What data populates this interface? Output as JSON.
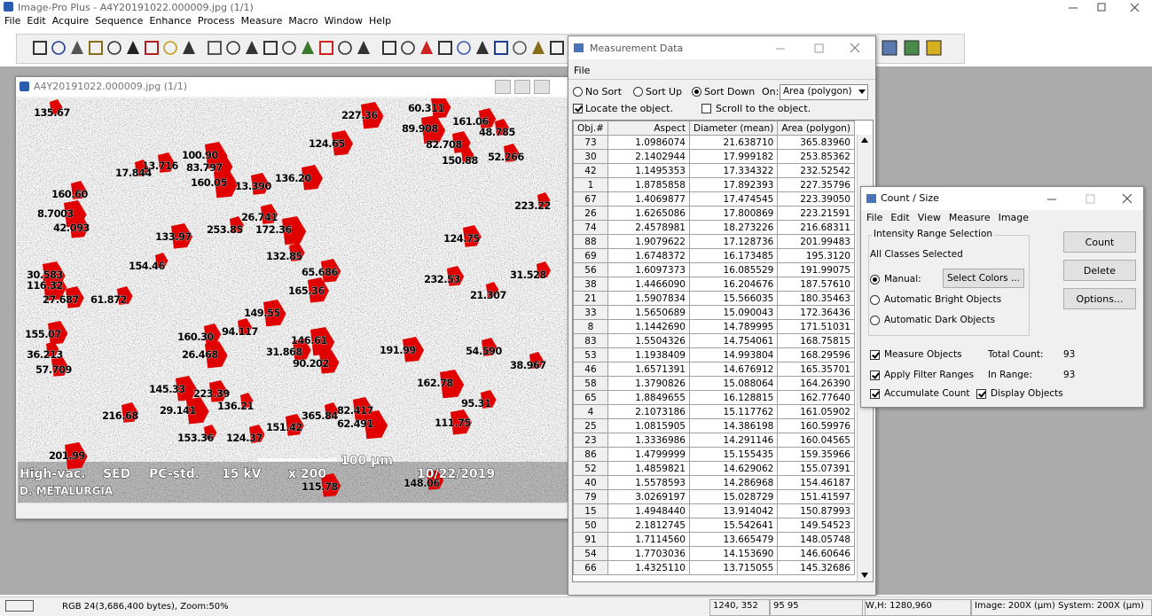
{
  "app": {
    "title": "Image-Pro Plus - A4Y20191022.000009.jpg (1/1)",
    "menu": [
      "File",
      "Edit",
      "Acquire",
      "Sequence",
      "Enhance",
      "Process",
      "Measure",
      "Macro",
      "Window",
      "Help"
    ]
  },
  "image_window": {
    "title": "A4Y20191022.000009.jpg (1/1)",
    "particle_labels": [
      "135.67",
      "227.36",
      "60.311",
      "161.06",
      "48.785",
      "89.908",
      "124.65",
      "82.708",
      "52.266",
      "150.88",
      "100.90",
      "83.797",
      "13.716",
      "17.844",
      "160.05",
      "136.20",
      "13.390",
      "160.60",
      "223.22",
      "8.7003",
      "42.093",
      "26.741",
      "253.85",
      "172.36",
      "133.97",
      "124.75",
      "132.85",
      "154.46",
      "30.583",
      "65.686",
      "232.53",
      "31.528",
      "116.32",
      "165.36",
      "27.687",
      "61.872",
      "21.307",
      "149.55",
      "155.07",
      "160.30",
      "94.117",
      "146.61",
      "191.99",
      "31.868",
      "54.590",
      "36.213",
      "26.468",
      "90.202",
      "57.709",
      "38.967",
      "162.78",
      "145.33",
      "223.39",
      "95.31",
      "136.21",
      "29.141",
      "82.417",
      "216.68",
      "365.84",
      "62.491",
      "111.75",
      "151.42",
      "124.37",
      "153.36",
      "201.99",
      "115.78",
      "148.06"
    ],
    "info_bar": {
      "mode": "High-vac.",
      "detector": "SED",
      "pc": "PC-std.",
      "voltage": "15 kV",
      "magnification": "x 200",
      "scale": "100 µm",
      "date": "10/22/2019",
      "operator": "D. METALURGIA"
    }
  },
  "measurement_window": {
    "title": "Measurement Data",
    "menu": [
      "File"
    ],
    "sort_options": [
      "No Sort",
      "Sort Up",
      "Sort Down"
    ],
    "sort_on_label": "On:",
    "sort_on_value": "Area (polygon)",
    "locate": "Locate the object.",
    "scroll": "Scroll to the object.",
    "table": {
      "headers": [
        "Obj.#",
        "Aspect",
        "Diameter (mean)",
        "Area (polygon)"
      ],
      "rows": [
        [
          "73",
          "1.0986074",
          "21.638710",
          "365.83960"
        ],
        [
          "30",
          "2.1402944",
          "17.999182",
          "253.85362"
        ],
        [
          "42",
          "1.1495353",
          "17.334322",
          "232.52542"
        ],
        [
          "1",
          "1.8785858",
          "17.892393",
          "227.35796"
        ],
        [
          "67",
          "1.4069877",
          "17.474545",
          "223.39050"
        ],
        [
          "26",
          "1.6265086",
          "17.800869",
          "223.21591"
        ],
        [
          "74",
          "2.4578981",
          "18.273226",
          "216.68311"
        ],
        [
          "88",
          "1.9079622",
          "17.128736",
          "201.99483"
        ],
        [
          "69",
          "1.6748372",
          "16.173485",
          "195.3120"
        ],
        [
          "56",
          "1.6097373",
          "16.085529",
          "191.99075"
        ],
        [
          "38",
          "1.4466090",
          "16.204676",
          "187.57610"
        ],
        [
          "21",
          "1.5907834",
          "15.566035",
          "180.35463"
        ],
        [
          "33",
          "1.5650689",
          "15.090043",
          "172.36436"
        ],
        [
          "8",
          "1.1442690",
          "14.789995",
          "171.51031"
        ],
        [
          "83",
          "1.5504326",
          "14.754061",
          "168.75815"
        ],
        [
          "53",
          "1.1938409",
          "14.993804",
          "168.29596"
        ],
        [
          "46",
          "1.6571391",
          "14.676912",
          "165.35701"
        ],
        [
          "58",
          "1.3790826",
          "15.088064",
          "164.26390"
        ],
        [
          "65",
          "1.8849655",
          "16.128815",
          "162.77640"
        ],
        [
          "4",
          "2.1073186",
          "15.117762",
          "161.05902"
        ],
        [
          "25",
          "1.0815905",
          "14.386198",
          "160.59976"
        ],
        [
          "23",
          "1.3336986",
          "14.291146",
          "160.04565"
        ],
        [
          "86",
          "1.4799999",
          "15.155435",
          "159.35966"
        ],
        [
          "52",
          "1.4859821",
          "14.629062",
          "155.07391"
        ],
        [
          "40",
          "1.5578593",
          "14.286968",
          "154.46187"
        ],
        [
          "79",
          "3.0269197",
          "15.028729",
          "151.41597"
        ],
        [
          "15",
          "1.4948440",
          "13.914042",
          "150.87993"
        ],
        [
          "50",
          "2.1812745",
          "15.542641",
          "149.54523"
        ],
        [
          "91",
          "1.7114560",
          "13.665479",
          "148.05748"
        ],
        [
          "54",
          "1.7703036",
          "14.153690",
          "146.60646"
        ],
        [
          "66",
          "1.4325110",
          "13.715055",
          "145.32686"
        ]
      ]
    }
  },
  "count_window": {
    "title": "Count / Size",
    "menu": [
      "File",
      "Edit",
      "View",
      "Measure",
      "Image"
    ],
    "group_title": "Intensity Range Selection",
    "classes": "All Classes Selected",
    "manual": "Manual:",
    "select_colors": "Select Colors ...",
    "auto_bright": "Automatic Bright Objects",
    "auto_dark": "Automatic Dark Objects",
    "buttons": [
      "Count",
      "Delete",
      "Options..."
    ],
    "measure_objects": "Measure Objects",
    "apply_filter": "Apply Filter Ranges",
    "accumulate": "Accumulate Count",
    "display_objects": "Display Objects",
    "total_count_label": "Total Count:",
    "total_count": "93",
    "in_range_label": "In Range:",
    "in_range": "93"
  },
  "status_bar": {
    "image_info": "RGB 24(3,686,400 bytes), Zoom:50%",
    "position": "1240, 352",
    "value": "95 95",
    "size": "W,H: 1280,960",
    "calibration": "Image: 200X (µm) System: 200X (µm)"
  }
}
